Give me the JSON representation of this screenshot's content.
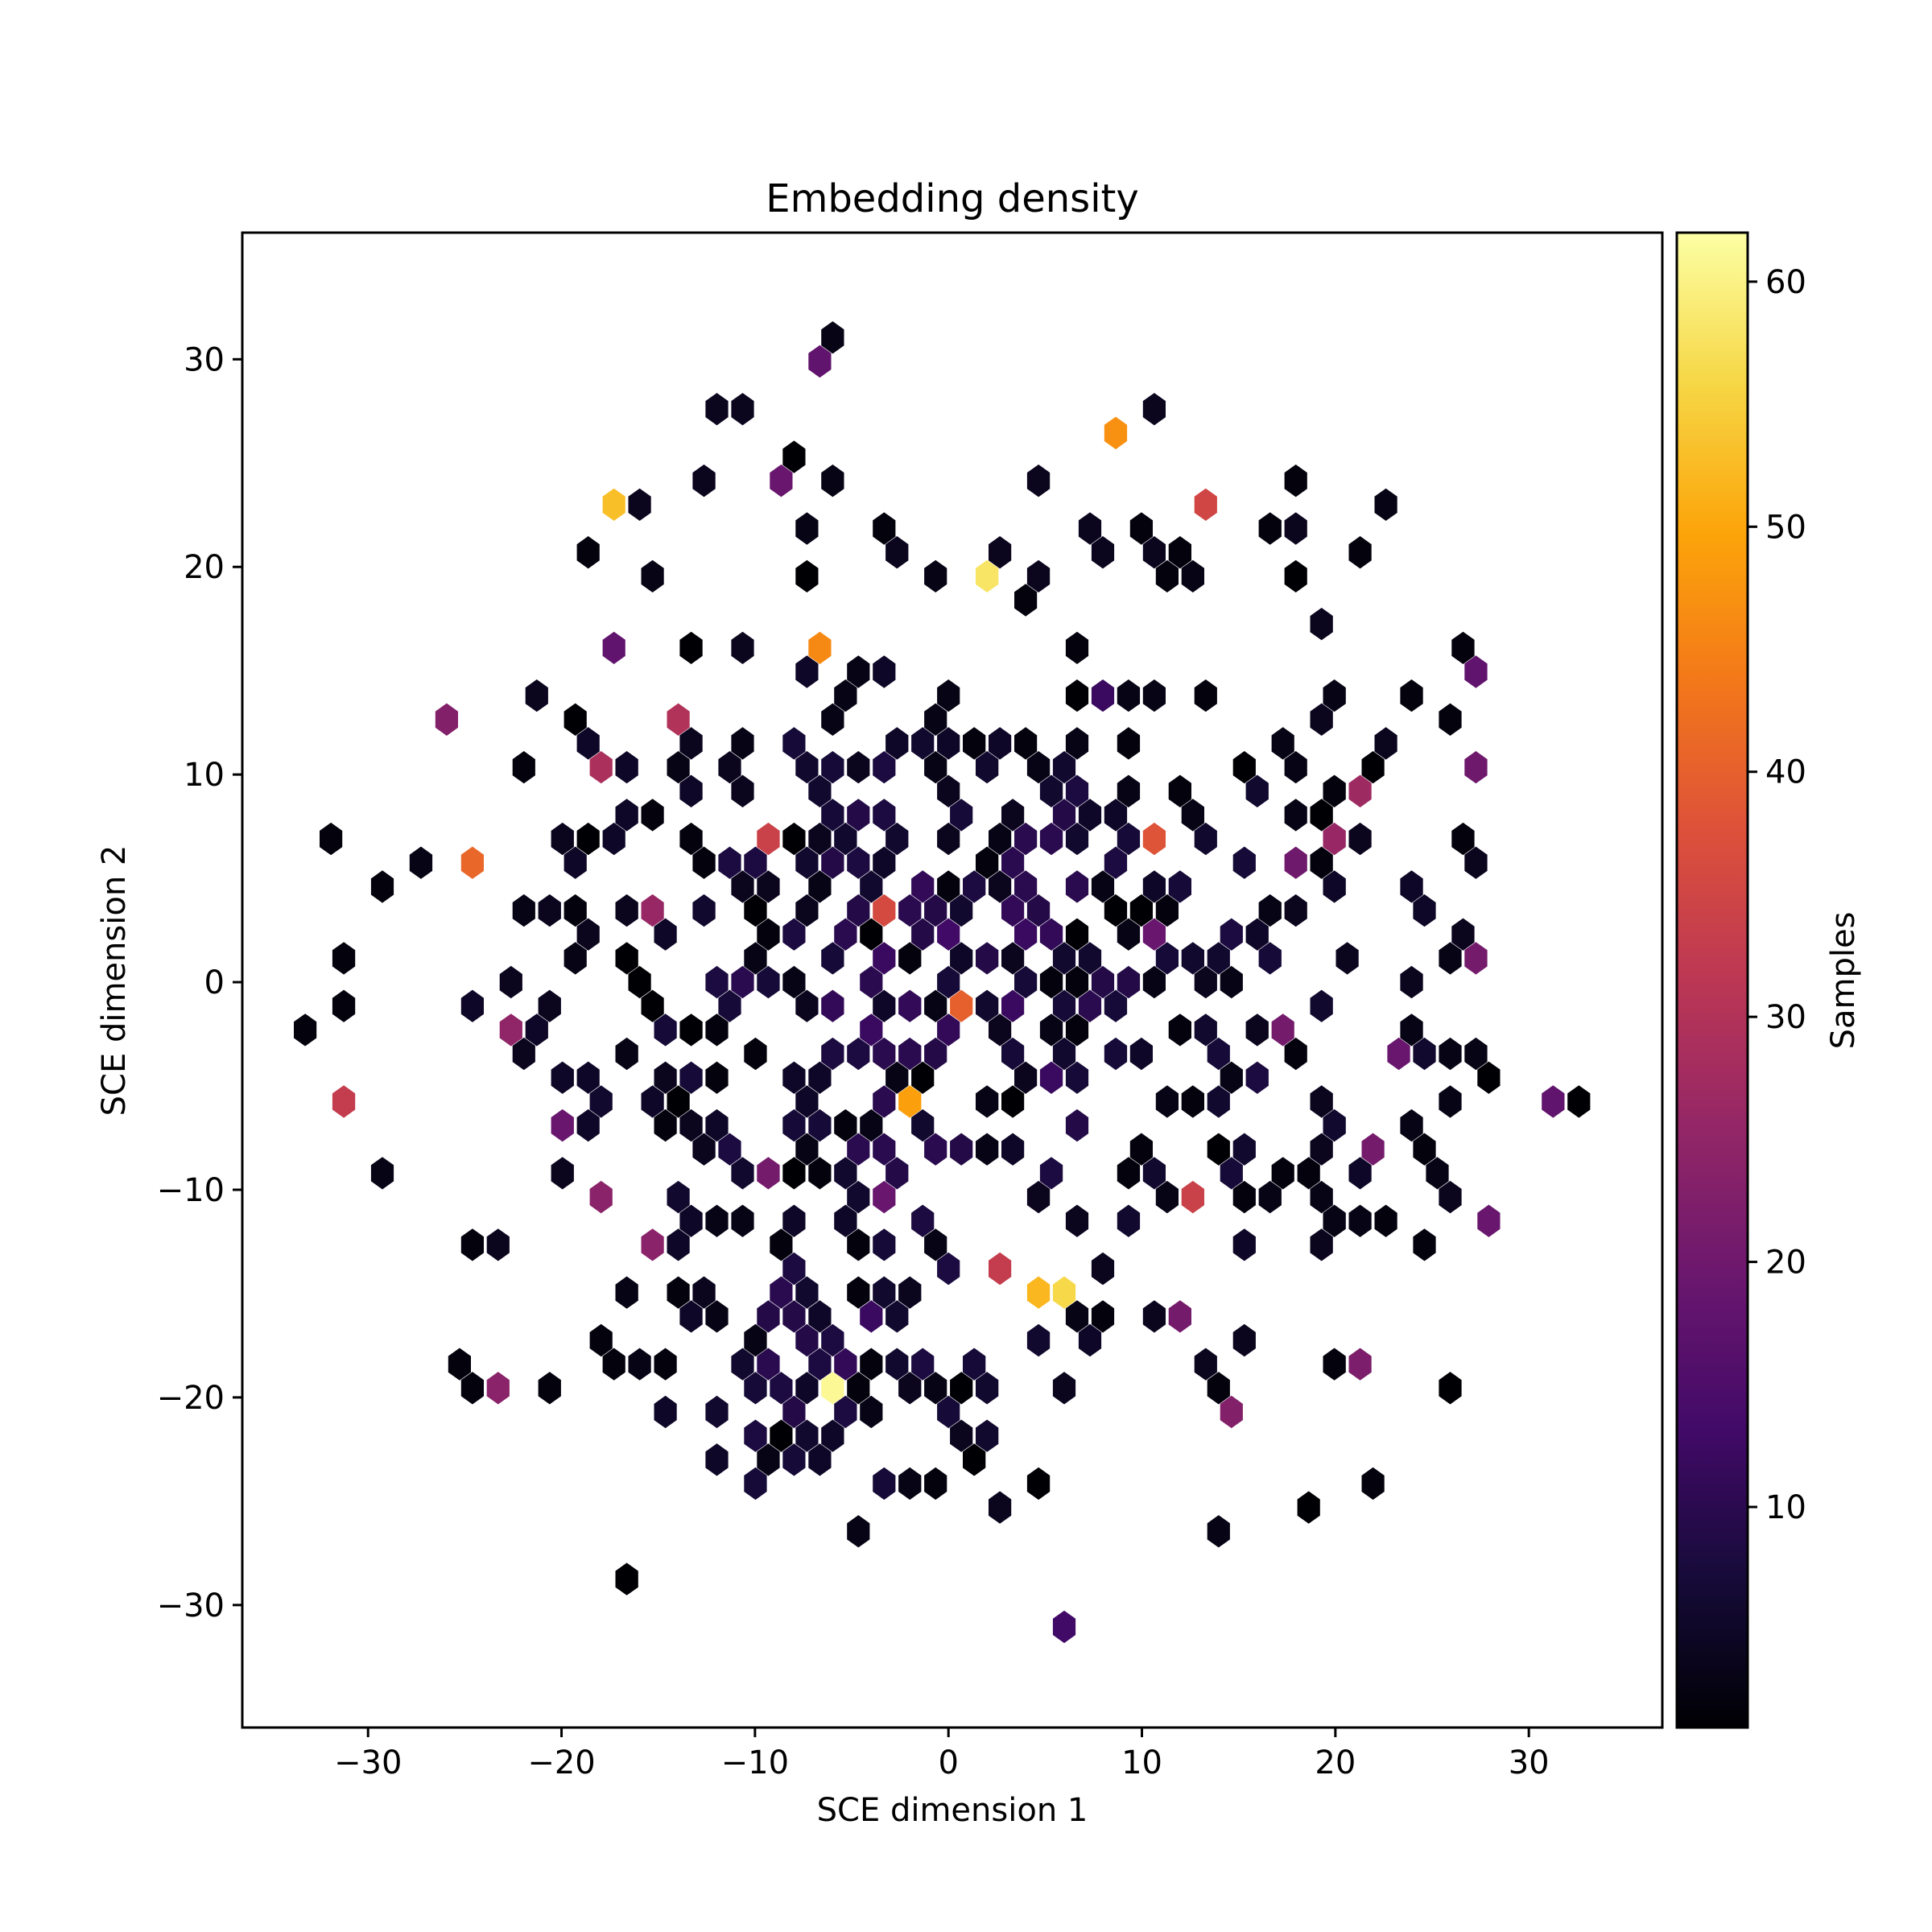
{
  "chart_data": {
    "type": "heatmap",
    "subtype": "hexbin",
    "title": "Embedding density",
    "xlabel": "SCE dimension 1",
    "ylabel": "SCE dimension 2",
    "xlim": [
      -36.5,
      36.9
    ],
    "ylim": [
      -35.9,
      36.1
    ],
    "xticks": [
      -30,
      -20,
      -10,
      0,
      10,
      20,
      30
    ],
    "yticks": [
      -30,
      -20,
      -10,
      0,
      10,
      20,
      30
    ],
    "xtick_labels": [
      "−30",
      "−20",
      "−10",
      "0",
      "10",
      "20",
      "30"
    ],
    "ytick_labels": [
      "−30",
      "−20",
      "−10",
      "0",
      "10",
      "20",
      "30"
    ],
    "grid": false,
    "colormap": "inferno",
    "colorbar": {
      "label": "Samples",
      "range": [
        1,
        62
      ],
      "ticks": [
        10,
        20,
        30,
        40,
        50,
        60
      ],
      "tick_labels": [
        "10",
        "20",
        "30",
        "40",
        "50",
        "60"
      ]
    },
    "hex_grid": {
      "dx": 1.33,
      "dy": 1.15
    },
    "highlighted_bins": [
      {
        "x": -5.8,
        "y": -19.6,
        "count": 61
      },
      {
        "x": 2.1,
        "y": 20.1,
        "count": 58
      },
      {
        "x": 6.2,
        "y": -14.9,
        "count": 56
      },
      {
        "x": 4.9,
        "y": -14.9,
        "count": 52
      },
      {
        "x": -17.9,
        "y": 22.5,
        "count": 53
      },
      {
        "x": -1.9,
        "y": -5.5,
        "count": 49
      },
      {
        "x": 8.1,
        "y": 25.9,
        "count": 47
      },
      {
        "x": -6.5,
        "y": 16.5,
        "count": 46
      },
      {
        "x": -24.5,
        "y": 6.0,
        "count": 41
      },
      {
        "x": 1.0,
        "y": -0.7,
        "count": 40
      },
      {
        "x": 10.7,
        "y": 7.3,
        "count": 38
      },
      {
        "x": -3.2,
        "y": 3.7,
        "count": 36
      },
      {
        "x": 12.8,
        "y": 22.6,
        "count": 35
      },
      {
        "x": -9.1,
        "y": 7.3,
        "count": 34
      },
      {
        "x": 12.6,
        "y": -10.2,
        "count": 34
      },
      {
        "x": -30.6,
        "y": -5.6,
        "count": 33
      },
      {
        "x": 2.8,
        "y": -13.7,
        "count": 33
      },
      {
        "x": -14.2,
        "y": 13.1,
        "count": 30
      },
      {
        "x": -17.7,
        "y": 10.8,
        "count": 29
      },
      {
        "x": 21.5,
        "y": 9.7,
        "count": 27
      },
      {
        "x": 20.0,
        "y": 7.3,
        "count": 26
      },
      {
        "x": -15.5,
        "y": 3.8,
        "count": 26
      },
      {
        "x": -23.2,
        "y": -2.0,
        "count": 25
      },
      {
        "x": -26.6,
        "y": 13.2,
        "count": 23
      },
      {
        "x": -17.6,
        "y": -10.3,
        "count": 24
      },
      {
        "x": -15.3,
        "y": -12.6,
        "count": 24
      },
      {
        "x": -23.0,
        "y": -19.7,
        "count": 24
      },
      {
        "x": 14.8,
        "y": -20.8,
        "count": 23
      },
      {
        "x": 22.5,
        "y": -7.8,
        "count": 21
      },
      {
        "x": 21.6,
        "y": -18.5,
        "count": 22
      },
      {
        "x": 28.3,
        "y": -11.5,
        "count": 19
      },
      {
        "x": 26.7,
        "y": 9.8,
        "count": 20
      },
      {
        "x": 27.0,
        "y": 1.4,
        "count": 21
      },
      {
        "x": 31.0,
        "y": -5.5,
        "count": 18
      },
      {
        "x": 12.4,
        "y": -16.2,
        "count": 21
      },
      {
        "x": -9.1,
        "y": -9.2,
        "count": 21
      },
      {
        "x": -3.8,
        "y": -10.3,
        "count": 19
      },
      {
        "x": 18.0,
        "y": 6.0,
        "count": 20
      },
      {
        "x": 17.9,
        "y": -2.1,
        "count": 21
      },
      {
        "x": 23.7,
        "y": -3.3,
        "count": 19
      },
      {
        "x": 27.1,
        "y": 15.4,
        "count": 18
      },
      {
        "x": -19.7,
        "y": -6.8,
        "count": 19
      },
      {
        "x": -7.3,
        "y": 29.5,
        "count": 18
      },
      {
        "x": -8.7,
        "y": 23.8,
        "count": 19
      },
      {
        "x": -17.5,
        "y": 16.5,
        "count": 18
      },
      {
        "x": 11.1,
        "y": 2.5,
        "count": 19
      },
      {
        "x": 6.0,
        "y": -30.6,
        "count": 13
      },
      {
        "x": 8.2,
        "y": 14.1,
        "count": 12
      }
    ],
    "unlabelled_bin_counts": "most bins hold 1–12 samples (black to dark purple)"
  }
}
